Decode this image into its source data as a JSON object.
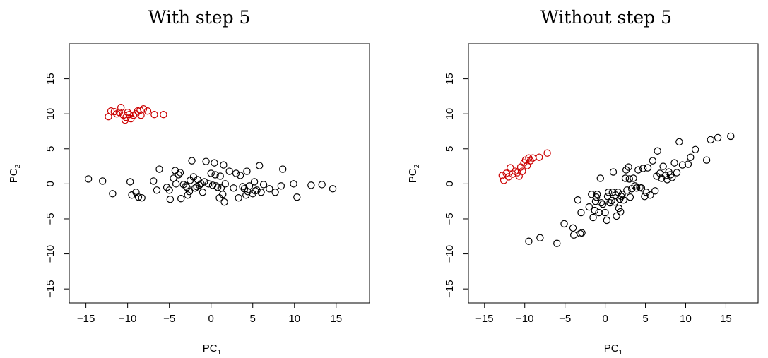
{
  "chart_data": [
    {
      "type": "scatter",
      "title": "With step 5",
      "xlabel": "PC",
      "xlabel_sub": "1",
      "ylabel": "PC",
      "ylabel_sub": "2",
      "xlim": [
        -17,
        19
      ],
      "ylim": [
        -17,
        20
      ],
      "xticks": [
        -15,
        -10,
        -5,
        0,
        5,
        10,
        15
      ],
      "yticks": [
        -15,
        -10,
        -5,
        0,
        5,
        10,
        15
      ],
      "xtick_labels": [
        "−15",
        "−10",
        "−5",
        "0",
        "5",
        "10",
        "15"
      ],
      "ytick_labels": [
        "−15",
        "−10",
        "−5",
        "0",
        "5",
        "10",
        "15"
      ],
      "grid": false,
      "marker": "open-circle",
      "series": [
        {
          "color": "#cc0000",
          "points": [
            [
              -12.3,
              9.6
            ],
            [
              -12.0,
              10.4
            ],
            [
              -11.6,
              10.3
            ],
            [
              -11.3,
              10.0
            ],
            [
              -11.0,
              10.2
            ],
            [
              -10.8,
              10.9
            ],
            [
              -10.5,
              9.8
            ],
            [
              -10.3,
              9.1
            ],
            [
              -10.2,
              9.5
            ],
            [
              -10.0,
              10.2
            ],
            [
              -9.8,
              9.9
            ],
            [
              -9.6,
              9.3
            ],
            [
              -9.3,
              9.8
            ],
            [
              -9.0,
              10.0
            ],
            [
              -8.8,
              10.4
            ],
            [
              -8.5,
              10.5
            ],
            [
              -8.4,
              9.8
            ],
            [
              -8.1,
              10.7
            ],
            [
              -7.6,
              10.4
            ],
            [
              -6.8,
              9.9
            ],
            [
              -5.7,
              9.9
            ]
          ]
        },
        {
          "color": "#000000",
          "points": [
            [
              -14.7,
              0.7
            ],
            [
              -13.0,
              0.4
            ],
            [
              -11.8,
              -1.4
            ],
            [
              -9.7,
              0.3
            ],
            [
              -9.5,
              -1.6
            ],
            [
              -9.0,
              -1.2
            ],
            [
              -8.7,
              -1.9
            ],
            [
              -8.3,
              -2.0
            ],
            [
              -6.9,
              0.4
            ],
            [
              -6.5,
              -0.9
            ],
            [
              -6.2,
              2.1
            ],
            [
              -5.3,
              -0.5
            ],
            [
              -5.0,
              -0.9
            ],
            [
              -4.9,
              -2.2
            ],
            [
              -4.5,
              0.8
            ],
            [
              -4.3,
              1.9
            ],
            [
              -4.2,
              0.0
            ],
            [
              -3.9,
              1.3
            ],
            [
              -3.7,
              1.6
            ],
            [
              -3.6,
              -2.1
            ],
            [
              -3.3,
              -0.1
            ],
            [
              -3.0,
              -0.3
            ],
            [
              -2.9,
              -0.5
            ],
            [
              -2.8,
              -1.6
            ],
            [
              -2.6,
              -1.1
            ],
            [
              -2.5,
              0.5
            ],
            [
              -2.3,
              3.3
            ],
            [
              -2.1,
              1.0
            ],
            [
              -1.9,
              -0.6
            ],
            [
              -1.7,
              -0.4
            ],
            [
              -1.6,
              0.6
            ],
            [
              -1.4,
              -0.2
            ],
            [
              -1.2,
              0.0
            ],
            [
              -1.0,
              -1.2
            ],
            [
              -0.8,
              0.3
            ],
            [
              -0.6,
              3.2
            ],
            [
              -0.3,
              0.0
            ],
            [
              0.0,
              1.5
            ],
            [
              0.2,
              -0.2
            ],
            [
              0.4,
              3.0
            ],
            [
              0.5,
              1.3
            ],
            [
              0.6,
              -0.3
            ],
            [
              0.8,
              -0.5
            ],
            [
              1.0,
              -2.0
            ],
            [
              1.1,
              1.1
            ],
            [
              1.2,
              -0.6
            ],
            [
              1.4,
              -1.5
            ],
            [
              1.5,
              2.7
            ],
            [
              1.6,
              -2.6
            ],
            [
              1.7,
              0.0
            ],
            [
              2.2,
              1.8
            ],
            [
              2.7,
              -0.6
            ],
            [
              3.0,
              1.5
            ],
            [
              3.3,
              -2.0
            ],
            [
              3.5,
              1.2
            ],
            [
              3.8,
              -0.4
            ],
            [
              4.0,
              -0.7
            ],
            [
              4.2,
              -1.6
            ],
            [
              4.3,
              1.8
            ],
            [
              4.4,
              -1.1
            ],
            [
              4.6,
              -0.3
            ],
            [
              5.0,
              -1.4
            ],
            [
              5.2,
              0.3
            ],
            [
              5.3,
              -1.0
            ],
            [
              5.5,
              -0.9
            ],
            [
              5.8,
              2.6
            ],
            [
              6.0,
              -1.2
            ],
            [
              6.3,
              -0.1
            ],
            [
              7.0,
              -0.7
            ],
            [
              7.7,
              -1.2
            ],
            [
              8.4,
              -0.3
            ],
            [
              8.6,
              2.1
            ],
            [
              9.9,
              0.0
            ],
            [
              10.3,
              -1.9
            ],
            [
              12.0,
              -0.2
            ],
            [
              13.3,
              -0.1
            ],
            [
              14.6,
              -0.7
            ]
          ]
        }
      ]
    },
    {
      "type": "scatter",
      "title": "Without step 5",
      "xlabel": "PC",
      "xlabel_sub": "1",
      "ylabel": "PC",
      "ylabel_sub": "2",
      "xlim": [
        -17,
        19
      ],
      "ylim": [
        -17,
        20
      ],
      "xticks": [
        -15,
        -10,
        -5,
        0,
        5,
        10,
        15
      ],
      "yticks": [
        -15,
        -10,
        -5,
        0,
        5,
        10,
        15
      ],
      "xtick_labels": [
        "−15",
        "−10",
        "−5",
        "0",
        "5",
        "10",
        "15"
      ],
      "ytick_labels": [
        "−15",
        "−10",
        "−5",
        "0",
        "5",
        "10",
        "15"
      ],
      "grid": false,
      "marker": "open-circle",
      "series": [
        {
          "color": "#cc0000",
          "points": [
            [
              -12.8,
              1.2
            ],
            [
              -12.6,
              0.5
            ],
            [
              -12.3,
              1.5
            ],
            [
              -12.0,
              1.0
            ],
            [
              -11.8,
              2.3
            ],
            [
              -11.5,
              1.4
            ],
            [
              -11.2,
              1.8
            ],
            [
              -10.9,
              1.6
            ],
            [
              -10.7,
              1.1
            ],
            [
              -10.5,
              2.4
            ],
            [
              -10.3,
              1.8
            ],
            [
              -10.1,
              3.0
            ],
            [
              -9.9,
              3.4
            ],
            [
              -9.7,
              2.6
            ],
            [
              -9.5,
              3.7
            ],
            [
              -9.3,
              3.3
            ],
            [
              -9.0,
              3.7
            ],
            [
              -8.2,
              3.8
            ],
            [
              -7.2,
              4.4
            ]
          ]
        },
        {
          "color": "#000000",
          "points": [
            [
              -9.5,
              -8.2
            ],
            [
              -8.1,
              -7.7
            ],
            [
              -6.0,
              -8.5
            ],
            [
              -5.1,
              -5.7
            ],
            [
              -4.0,
              -6.3
            ],
            [
              -3.9,
              -7.3
            ],
            [
              -3.4,
              -2.3
            ],
            [
              -3.1,
              -7.1
            ],
            [
              -3.0,
              -4.1
            ],
            [
              -2.9,
              -7.0
            ],
            [
              -2.0,
              -3.3
            ],
            [
              -1.7,
              -1.5
            ],
            [
              -1.5,
              -4.8
            ],
            [
              -1.3,
              -3.8
            ],
            [
              -1.2,
              -2.5
            ],
            [
              -1.1,
              -1.9
            ],
            [
              -1.0,
              -1.5
            ],
            [
              -0.8,
              -4.1
            ],
            [
              -0.6,
              0.8
            ],
            [
              -0.5,
              -2.7
            ],
            [
              -0.3,
              -2.9
            ],
            [
              0.0,
              -4.1
            ],
            [
              0.2,
              -5.2
            ],
            [
              0.3,
              -1.8
            ],
            [
              0.4,
              -1.2
            ],
            [
              0.6,
              -2.7
            ],
            [
              0.8,
              -2.4
            ],
            [
              0.9,
              -1.2
            ],
            [
              1.0,
              1.7
            ],
            [
              1.2,
              -2.6
            ],
            [
              1.3,
              -1.6
            ],
            [
              1.4,
              -4.6
            ],
            [
              1.6,
              -1.2
            ],
            [
              1.7,
              -3.5
            ],
            [
              1.8,
              -2.2
            ],
            [
              1.9,
              -4.0
            ],
            [
              2.0,
              -1.8
            ],
            [
              2.1,
              -1.5
            ],
            [
              2.3,
              -2.3
            ],
            [
              2.5,
              0.8
            ],
            [
              2.6,
              2.0
            ],
            [
              2.7,
              -0.9
            ],
            [
              2.9,
              2.4
            ],
            [
              3.0,
              0.7
            ],
            [
              3.1,
              -1.9
            ],
            [
              3.3,
              -0.7
            ],
            [
              3.5,
              0.8
            ],
            [
              3.7,
              -0.3
            ],
            [
              3.9,
              -0.6
            ],
            [
              4.1,
              2.0
            ],
            [
              4.3,
              -0.5
            ],
            [
              4.5,
              -0.6
            ],
            [
              4.7,
              2.2
            ],
            [
              4.9,
              -1.8
            ],
            [
              5.1,
              -1.2
            ],
            [
              5.3,
              2.3
            ],
            [
              5.6,
              -1.6
            ],
            [
              5.9,
              3.3
            ],
            [
              6.2,
              -1.0
            ],
            [
              6.4,
              1.1
            ],
            [
              6.5,
              4.7
            ],
            [
              6.8,
              1.5
            ],
            [
              7.0,
              0.8
            ],
            [
              7.2,
              2.5
            ],
            [
              7.5,
              1.2
            ],
            [
              7.7,
              0.6
            ],
            [
              7.9,
              1.7
            ],
            [
              8.1,
              1.3
            ],
            [
              8.3,
              0.9
            ],
            [
              8.6,
              3.0
            ],
            [
              8.9,
              1.6
            ],
            [
              9.2,
              6.0
            ],
            [
              9.6,
              2.7
            ],
            [
              10.3,
              2.8
            ],
            [
              10.6,
              3.8
            ],
            [
              11.2,
              4.9
            ],
            [
              12.6,
              3.4
            ],
            [
              13.1,
              6.3
            ],
            [
              14.0,
              6.6
            ],
            [
              15.6,
              6.8
            ]
          ]
        }
      ]
    }
  ]
}
